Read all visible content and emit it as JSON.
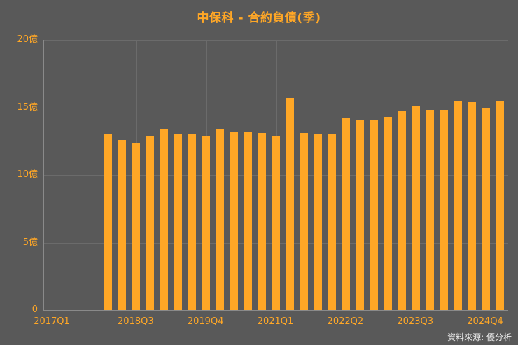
{
  "title": "中保科 - 合約負債(季)",
  "source_label": "資料來源: 優分析",
  "colors": {
    "background": "#595959",
    "bar": "#FFA726",
    "accent_text": "#FFA726",
    "grid": "#6B6B6B",
    "axis": "#8A8A8A",
    "source_text": "#ECECEC"
  },
  "chart_data": {
    "type": "bar",
    "title": "中保科 - 合約負債(季)",
    "unit": "億",
    "ylabel": "",
    "xlabel": "",
    "ylim": [
      0,
      20
    ],
    "grid": true,
    "legend": false,
    "y_ticks": [
      {
        "value": 0,
        "label": "0"
      },
      {
        "value": 5,
        "label": "5億"
      },
      {
        "value": 10,
        "label": "10億"
      },
      {
        "value": 15,
        "label": "15億"
      },
      {
        "value": 20,
        "label": "20億"
      }
    ],
    "x_axis_range": {
      "start": "2017Q1",
      "end": "2025Q1"
    },
    "x_ticks": [
      {
        "label": "2017Q1",
        "index": 0
      },
      {
        "label": "2018Q3",
        "index": 6
      },
      {
        "label": "2019Q4",
        "index": 11
      },
      {
        "label": "2021Q1",
        "index": 16
      },
      {
        "label": "2022Q2",
        "index": 21
      },
      {
        "label": "2023Q3",
        "index": 26
      },
      {
        "label": "2024Q4",
        "index": 31
      }
    ],
    "categories": [
      "2018Q1",
      "2018Q2",
      "2018Q3",
      "2018Q4",
      "2019Q1",
      "2019Q2",
      "2019Q3",
      "2019Q4",
      "2020Q1",
      "2020Q2",
      "2020Q3",
      "2020Q4",
      "2021Q1",
      "2021Q2",
      "2021Q3",
      "2021Q4",
      "2022Q1",
      "2022Q2",
      "2022Q3",
      "2022Q4",
      "2023Q1",
      "2023Q2",
      "2023Q3",
      "2023Q4",
      "2024Q1",
      "2024Q2",
      "2024Q3",
      "2024Q4",
      "2025Q1"
    ],
    "values": [
      13.0,
      12.6,
      12.4,
      12.9,
      13.4,
      13.0,
      13.0,
      12.9,
      13.4,
      13.2,
      13.2,
      13.1,
      12.9,
      15.7,
      13.1,
      13.0,
      13.0,
      14.2,
      14.1,
      14.1,
      14.3,
      14.7,
      15.1,
      14.8,
      14.8,
      15.5,
      15.4,
      15.0,
      15.5
    ]
  }
}
